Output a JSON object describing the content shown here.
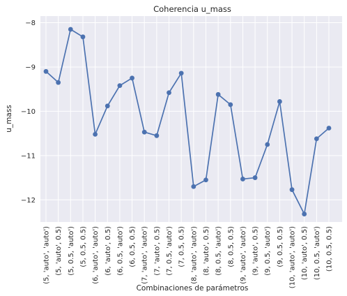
{
  "chart_data": {
    "type": "line",
    "title": "Coherencia u_mass",
    "xlabel": "Combinaciones de parámetros",
    "ylabel": "u_mass",
    "categories": [
      "(5, 'auto', 'auto')",
      "(5, 'auto', 0.5)",
      "(5, 0.5, 'auto')",
      "(5, 0.5, 0.5)",
      "(6, 'auto', 'auto')",
      "(6, 'auto', 0.5)",
      "(6, 0.5, 'auto')",
      "(6, 0.5, 0.5)",
      "(7, 'auto', 'auto')",
      "(7, 'auto', 0.5)",
      "(7, 0.5, 'auto')",
      "(7, 0.5, 0.5)",
      "(8, 'auto', 'auto')",
      "(8, 'auto', 0.5)",
      "(8, 0.5, 'auto')",
      "(8, 0.5, 0.5)",
      "(9, 'auto', 'auto')",
      "(9, 'auto', 0.5)",
      "(9, 0.5, 'auto')",
      "(9, 0.5, 0.5)",
      "(10, 'auto', 'auto')",
      "(10, 'auto', 0.5)",
      "(10, 0.5, 'auto')",
      "(10, 0.5, 0.5)"
    ],
    "values": [
      -9.1,
      -9.35,
      -8.15,
      -8.32,
      -10.52,
      -9.88,
      -9.42,
      -9.25,
      -10.47,
      -10.55,
      -9.58,
      -9.14,
      -11.7,
      -11.55,
      -9.62,
      -9.85,
      -11.53,
      -11.5,
      -10.75,
      -9.78,
      -11.77,
      -12.32,
      -10.62,
      -10.38
    ],
    "yticks": [
      "−12",
      "−11",
      "−10",
      "−9",
      "−8"
    ],
    "ytick_values": [
      -12,
      -11,
      -10,
      -9,
      -8
    ],
    "ylim": [
      -12.5,
      -7.85
    ],
    "grid": true,
    "colors": {
      "series": "#4c72b0",
      "background": "#eaeaf2",
      "grid": "#ffffff"
    }
  }
}
